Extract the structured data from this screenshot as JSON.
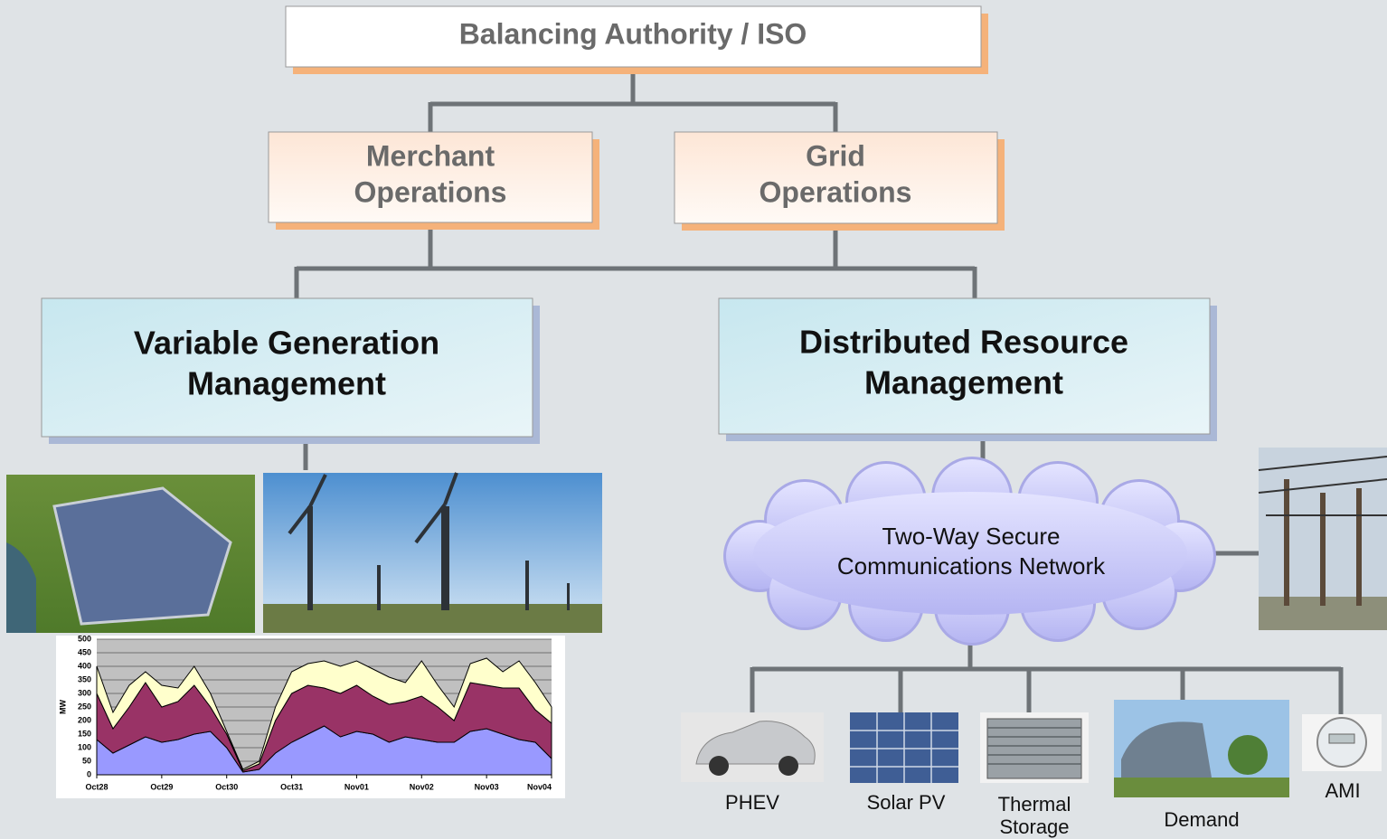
{
  "nodes": {
    "authority": {
      "lines": [
        "Balancing Authority / ISO"
      ]
    },
    "merchant": {
      "lines": [
        "Merchant",
        "Operations"
      ]
    },
    "grid": {
      "lines": [
        "Grid",
        "Operations"
      ]
    },
    "variable": {
      "lines": [
        "Variable Generation",
        "Management"
      ]
    },
    "distributed": {
      "lines": [
        "Distributed Resource",
        "Management"
      ]
    },
    "network": {
      "lines": [
        "Two-Way Secure",
        "Communications Network"
      ]
    }
  },
  "resources": [
    {
      "lines": [
        "PHEV"
      ]
    },
    {
      "lines": [
        "Solar PV"
      ]
    },
    {
      "lines": [
        "Thermal",
        "Storage"
      ]
    },
    {
      "lines": [
        "Demand"
      ]
    },
    {
      "lines": [
        "AMI"
      ]
    }
  ],
  "chart_data": {
    "type": "stacked_area",
    "y_label": "MW",
    "x": [
      0,
      0.25,
      0.5,
      0.75,
      1,
      1.25,
      1.5,
      1.75,
      2,
      2.25,
      2.5,
      2.75,
      3,
      3.25,
      3.5,
      3.75,
      4,
      4.25,
      4.5,
      4.75,
      5,
      5.25,
      5.5,
      5.75,
      6,
      6.25,
      6.5,
      6.75,
      7
    ],
    "xlim": [
      0,
      7
    ],
    "xticks": [
      {
        "value": 0,
        "label": "Oct28"
      },
      {
        "value": 1,
        "label": "Oct29"
      },
      {
        "value": 2,
        "label": "Oct30"
      },
      {
        "value": 3,
        "label": "Oct31"
      },
      {
        "value": 4,
        "label": "Nov01"
      },
      {
        "value": 5,
        "label": "Nov02"
      },
      {
        "value": 6,
        "label": "Nov03"
      },
      {
        "value": 7,
        "label": "Nov04"
      }
    ],
    "ylim": [
      0,
      500
    ],
    "yticks": [
      0,
      50,
      100,
      150,
      200,
      250,
      300,
      350,
      400,
      450,
      500
    ],
    "grid": true,
    "series": [
      {
        "color": "#9999ff",
        "values": [
          130,
          80,
          110,
          140,
          120,
          130,
          150,
          160,
          100,
          10,
          20,
          80,
          120,
          150,
          180,
          140,
          160,
          150,
          120,
          140,
          130,
          120,
          120,
          160,
          170,
          150,
          130,
          120,
          60
        ]
      },
      {
        "color": "#993366",
        "values": [
          170,
          90,
          140,
          200,
          130,
          140,
          180,
          90,
          50,
          5,
          20,
          120,
          180,
          180,
          140,
          160,
          170,
          140,
          140,
          130,
          160,
          130,
          80,
          180,
          160,
          170,
          190,
          120,
          130
        ]
      },
      {
        "color": "#ffffcc",
        "values": [
          100,
          60,
          80,
          40,
          80,
          50,
          70,
          50,
          10,
          5,
          10,
          50,
          80,
          80,
          100,
          100,
          90,
          100,
          100,
          70,
          130,
          80,
          50,
          70,
          100,
          60,
          100,
          100,
          60
        ]
      }
    ]
  }
}
